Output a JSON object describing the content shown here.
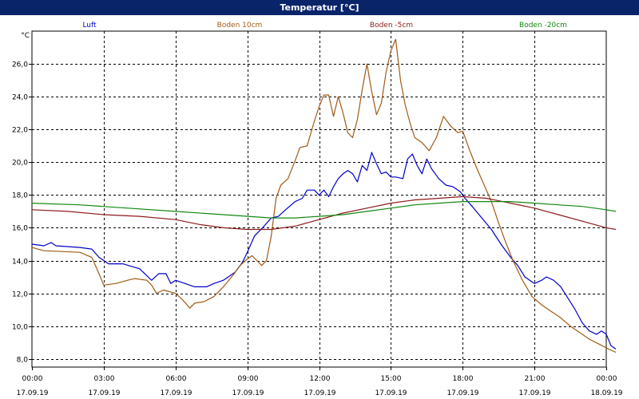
{
  "window": {
    "title": "Temperatur [°C]"
  },
  "chart_data": {
    "type": "line",
    "unit_label": "°C",
    "xlim": [
      0,
      24
    ],
    "ylim": [
      7.5,
      28
    ],
    "y_ticks": [
      "8,0",
      "10,0",
      "12,0",
      "14,0",
      "16,0",
      "18,0",
      "20,0",
      "22,0",
      "24,0",
      "26,0"
    ],
    "y_tick_values": [
      8,
      10,
      12,
      14,
      16,
      18,
      20,
      22,
      24,
      26
    ],
    "x_ticks": [
      {
        "time": "00:00",
        "date": "17.09.19",
        "hour": 0
      },
      {
        "time": "03:00",
        "date": "17.09.19",
        "hour": 3
      },
      {
        "time": "06:00",
        "date": "17.09.19",
        "hour": 6
      },
      {
        "time": "09:00",
        "date": "17.09.19",
        "hour": 9
      },
      {
        "time": "12:00",
        "date": "17.09.19",
        "hour": 12
      },
      {
        "time": "15:00",
        "date": "17.09.19",
        "hour": 15
      },
      {
        "time": "18:00",
        "date": "17.09.19",
        "hour": 18
      },
      {
        "time": "21:00",
        "date": "17.09.19",
        "hour": 21
      },
      {
        "time": "00:00",
        "date": "18.09.19",
        "hour": 24
      }
    ],
    "grid": true,
    "series": [
      {
        "name": "Luft",
        "color": "#0000cc",
        "points": [
          [
            0,
            15.0
          ],
          [
            0.5,
            14.9
          ],
          [
            0.8,
            15.1
          ],
          [
            1.0,
            14.9
          ],
          [
            2.0,
            14.8
          ],
          [
            2.5,
            14.7
          ],
          [
            2.8,
            14.2
          ],
          [
            3.2,
            13.8
          ],
          [
            3.8,
            13.8
          ],
          [
            4.5,
            13.5
          ],
          [
            5.0,
            12.8
          ],
          [
            5.3,
            13.2
          ],
          [
            5.6,
            13.2
          ],
          [
            5.8,
            12.6
          ],
          [
            6.0,
            12.8
          ],
          [
            6.4,
            12.6
          ],
          [
            6.8,
            12.4
          ],
          [
            7.3,
            12.4
          ],
          [
            7.6,
            12.6
          ],
          [
            8.0,
            12.8
          ],
          [
            8.5,
            13.3
          ],
          [
            8.8,
            13.9
          ],
          [
            9.0,
            14.5
          ],
          [
            9.3,
            15.5
          ],
          [
            9.7,
            16.1
          ],
          [
            10.0,
            16.6
          ],
          [
            10.3,
            16.7
          ],
          [
            10.6,
            17.1
          ],
          [
            11.0,
            17.6
          ],
          [
            11.3,
            17.8
          ],
          [
            11.5,
            18.3
          ],
          [
            11.8,
            18.3
          ],
          [
            12.0,
            18.0
          ],
          [
            12.2,
            18.3
          ],
          [
            12.4,
            17.9
          ],
          [
            12.6,
            18.5
          ],
          [
            12.8,
            19.0
          ],
          [
            13.0,
            19.3
          ],
          [
            13.2,
            19.5
          ],
          [
            13.4,
            19.3
          ],
          [
            13.6,
            18.8
          ],
          [
            13.8,
            19.8
          ],
          [
            14.0,
            19.5
          ],
          [
            14.2,
            20.6
          ],
          [
            14.4,
            19.9
          ],
          [
            14.6,
            19.3
          ],
          [
            14.8,
            19.4
          ],
          [
            15.0,
            19.1
          ],
          [
            15.2,
            19.1
          ],
          [
            15.5,
            19.0
          ],
          [
            15.7,
            20.2
          ],
          [
            15.9,
            20.5
          ],
          [
            16.1,
            19.8
          ],
          [
            16.3,
            19.3
          ],
          [
            16.5,
            20.2
          ],
          [
            16.7,
            19.6
          ],
          [
            17.0,
            19.0
          ],
          [
            17.3,
            18.6
          ],
          [
            17.6,
            18.5
          ],
          [
            17.9,
            18.2
          ],
          [
            18.1,
            17.8
          ],
          [
            18.4,
            17.3
          ],
          [
            18.8,
            16.6
          ],
          [
            19.2,
            15.9
          ],
          [
            19.6,
            15.0
          ],
          [
            20.0,
            14.2
          ],
          [
            20.3,
            13.7
          ],
          [
            20.6,
            13.0
          ],
          [
            21.0,
            12.6
          ],
          [
            21.3,
            12.8
          ],
          [
            21.5,
            13.0
          ],
          [
            21.8,
            12.8
          ],
          [
            22.1,
            12.4
          ],
          [
            22.4,
            11.7
          ],
          [
            22.7,
            11.0
          ],
          [
            23.0,
            10.2
          ],
          [
            23.3,
            9.7
          ],
          [
            23.6,
            9.5
          ],
          [
            23.8,
            9.7
          ],
          [
            24.0,
            9.5
          ],
          [
            24.2,
            8.8
          ],
          [
            24.4,
            8.6
          ]
        ]
      },
      {
        "name": "Boden 10cm",
        "color": "#a05a14",
        "points": [
          [
            0,
            14.8
          ],
          [
            0.5,
            14.6
          ],
          [
            2.0,
            14.5
          ],
          [
            2.5,
            14.2
          ],
          [
            2.8,
            13.2
          ],
          [
            3.0,
            12.5
          ],
          [
            3.5,
            12.6
          ],
          [
            4.0,
            12.8
          ],
          [
            4.3,
            12.9
          ],
          [
            4.8,
            12.8
          ],
          [
            5.0,
            12.5
          ],
          [
            5.2,
            12.0
          ],
          [
            5.5,
            12.2
          ],
          [
            6.0,
            12.0
          ],
          [
            6.3,
            11.6
          ],
          [
            6.6,
            11.1
          ],
          [
            6.8,
            11.4
          ],
          [
            7.2,
            11.5
          ],
          [
            7.6,
            11.8
          ],
          [
            8.0,
            12.4
          ],
          [
            8.4,
            13.1
          ],
          [
            8.7,
            13.7
          ],
          [
            9.0,
            14.1
          ],
          [
            9.2,
            14.3
          ],
          [
            9.4,
            14.0
          ],
          [
            9.6,
            13.7
          ],
          [
            9.8,
            14.0
          ],
          [
            10.0,
            15.5
          ],
          [
            10.2,
            17.8
          ],
          [
            10.4,
            18.6
          ],
          [
            10.7,
            19.0
          ],
          [
            11.0,
            20.1
          ],
          [
            11.2,
            20.9
          ],
          [
            11.5,
            21.0
          ],
          [
            11.8,
            22.5
          ],
          [
            12.0,
            23.4
          ],
          [
            12.2,
            24.1
          ],
          [
            12.4,
            24.1
          ],
          [
            12.6,
            22.8
          ],
          [
            12.8,
            24.0
          ],
          [
            13.0,
            23.0
          ],
          [
            13.2,
            21.8
          ],
          [
            13.4,
            21.5
          ],
          [
            13.6,
            22.6
          ],
          [
            13.8,
            24.4
          ],
          [
            14.0,
            26.0
          ],
          [
            14.2,
            24.3
          ],
          [
            14.4,
            22.9
          ],
          [
            14.6,
            23.6
          ],
          [
            14.8,
            25.5
          ],
          [
            15.0,
            26.8
          ],
          [
            15.2,
            27.5
          ],
          [
            15.4,
            25.0
          ],
          [
            15.6,
            23.5
          ],
          [
            15.8,
            22.4
          ],
          [
            16.0,
            21.5
          ],
          [
            16.3,
            21.2
          ],
          [
            16.6,
            20.7
          ],
          [
            16.9,
            21.5
          ],
          [
            17.2,
            22.8
          ],
          [
            17.5,
            22.2
          ],
          [
            17.8,
            21.8
          ],
          [
            18.0,
            21.9
          ],
          [
            18.3,
            20.7
          ],
          [
            18.6,
            19.6
          ],
          [
            18.9,
            18.6
          ],
          [
            19.2,
            17.6
          ],
          [
            19.5,
            16.3
          ],
          [
            19.8,
            15.1
          ],
          [
            20.1,
            14.0
          ],
          [
            20.5,
            12.8
          ],
          [
            20.9,
            11.8
          ],
          [
            21.3,
            11.3
          ],
          [
            21.7,
            10.9
          ],
          [
            22.1,
            10.5
          ],
          [
            22.5,
            10.0
          ],
          [
            22.9,
            9.6
          ],
          [
            23.3,
            9.2
          ],
          [
            23.7,
            8.9
          ],
          [
            24.1,
            8.6
          ],
          [
            24.4,
            8.4
          ]
        ]
      },
      {
        "name": "Boden -5cm",
        "color": "#8b1a1a",
        "points": [
          [
            0,
            17.1
          ],
          [
            1.5,
            17.0
          ],
          [
            3.0,
            16.8
          ],
          [
            4.5,
            16.7
          ],
          [
            6.0,
            16.5
          ],
          [
            7.0,
            16.2
          ],
          [
            8.0,
            16.0
          ],
          [
            9.0,
            15.9
          ],
          [
            10.0,
            15.9
          ],
          [
            11.0,
            16.1
          ],
          [
            12.0,
            16.5
          ],
          [
            13.0,
            16.9
          ],
          [
            14.0,
            17.2
          ],
          [
            15.0,
            17.5
          ],
          [
            16.0,
            17.7
          ],
          [
            17.0,
            17.8
          ],
          [
            18.0,
            17.9
          ],
          [
            19.0,
            17.8
          ],
          [
            20.0,
            17.5
          ],
          [
            21.0,
            17.2
          ],
          [
            22.0,
            16.8
          ],
          [
            23.0,
            16.4
          ],
          [
            24.0,
            16.0
          ],
          [
            24.4,
            15.9
          ]
        ]
      },
      {
        "name": "Boden -20cm",
        "color": "#118811",
        "points": [
          [
            0,
            17.5
          ],
          [
            2.0,
            17.4
          ],
          [
            4.0,
            17.2
          ],
          [
            6.0,
            17.0
          ],
          [
            8.0,
            16.8
          ],
          [
            10.0,
            16.6
          ],
          [
            11.0,
            16.6
          ],
          [
            12.0,
            16.7
          ],
          [
            13.0,
            16.8
          ],
          [
            14.0,
            17.0
          ],
          [
            15.0,
            17.2
          ],
          [
            16.0,
            17.4
          ],
          [
            17.0,
            17.5
          ],
          [
            18.0,
            17.6
          ],
          [
            19.0,
            17.6
          ],
          [
            20.0,
            17.6
          ],
          [
            21.0,
            17.5
          ],
          [
            22.0,
            17.4
          ],
          [
            23.0,
            17.3
          ],
          [
            24.0,
            17.1
          ],
          [
            24.4,
            17.0
          ]
        ]
      }
    ]
  }
}
